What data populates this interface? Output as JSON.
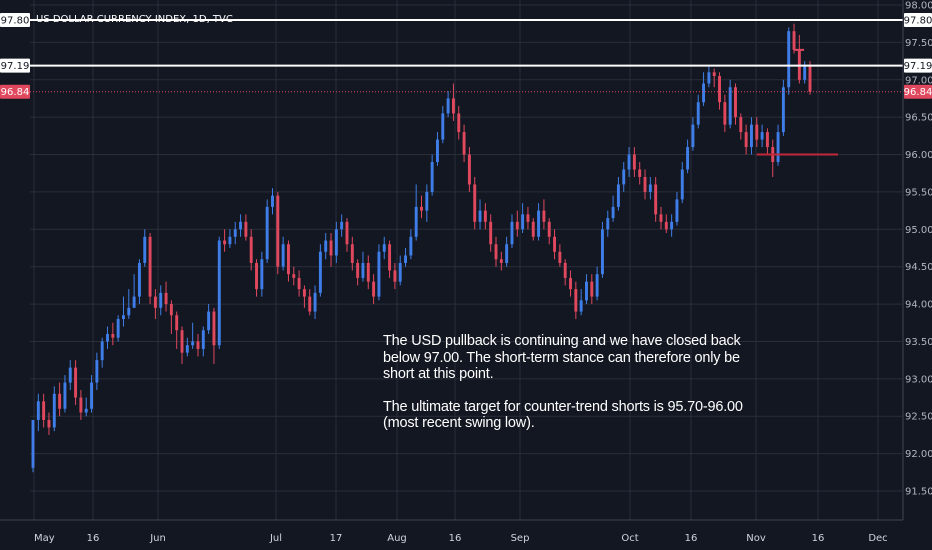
{
  "chart_data": {
    "type": "candlestick",
    "title": "US DOLLAR CURRENCY INDEX, 1D, TVC",
    "ylim": [
      91.1,
      98.0
    ],
    "y_ticks": [
      "98.00",
      "97.50",
      "97.00",
      "96.50",
      "96.00",
      "95.50",
      "95.00",
      "94.50",
      "94.00",
      "93.50",
      "93.00",
      "92.50",
      "92.00",
      "91.50"
    ],
    "x_ticks": [
      "May",
      "16",
      "Jun",
      "Jul",
      "17",
      "Aug",
      "16",
      "Sep",
      "Oct",
      "16",
      "Nov",
      "16",
      "Dec"
    ],
    "colors": {
      "up": "#3f7ee8",
      "down": "#e0485e",
      "background": "#131722",
      "grid": "#2a2e39"
    },
    "horizontal_lines": [
      {
        "label": "97.80",
        "value": 97.8,
        "color": "#ffffff"
      },
      {
        "label": "97.19",
        "value": 97.19,
        "color": "#ffffff"
      },
      {
        "label": "96.84",
        "value": 96.84,
        "color": "#e0485e",
        "style": "dotted"
      }
    ],
    "support_segment": {
      "value": 96.0,
      "color": "#c0283a"
    },
    "candles": [
      [
        91.81,
        92.45,
        92.45,
        91.75
      ],
      [
        92.45,
        92.7,
        92.8,
        92.3
      ],
      [
        92.7,
        92.45,
        92.8,
        92.35
      ],
      [
        92.45,
        92.35,
        92.55,
        92.25
      ],
      [
        92.35,
        92.8,
        92.9,
        92.3
      ],
      [
        92.8,
        92.6,
        92.95,
        92.5
      ],
      [
        92.6,
        92.95,
        93.05,
        92.55
      ],
      [
        92.95,
        93.15,
        93.25,
        92.85
      ],
      [
        93.15,
        92.75,
        93.25,
        92.65
      ],
      [
        92.75,
        92.55,
        92.85,
        92.45
      ],
      [
        92.55,
        92.6,
        92.75,
        92.5
      ],
      [
        92.6,
        92.95,
        93.05,
        92.55
      ],
      [
        92.95,
        93.25,
        93.35,
        92.85
      ],
      [
        93.25,
        93.5,
        93.55,
        93.15
      ],
      [
        93.5,
        93.6,
        93.7,
        93.4
      ],
      [
        93.6,
        93.55,
        93.75,
        93.45
      ],
      [
        93.55,
        93.8,
        93.85,
        93.5
      ],
      [
        93.8,
        93.85,
        94.1,
        93.7
      ],
      [
        93.85,
        93.95,
        94.2,
        93.8
      ],
      [
        93.95,
        94.1,
        94.4,
        93.95
      ],
      [
        94.1,
        94.55,
        94.6,
        94.0
      ],
      [
        94.55,
        94.9,
        95.0,
        94.5
      ],
      [
        94.9,
        94.1,
        94.95,
        94.0
      ],
      [
        94.1,
        93.95,
        94.2,
        93.8
      ],
      [
        93.95,
        94.15,
        94.25,
        93.85
      ],
      [
        94.15,
        94.0,
        94.3,
        93.9
      ],
      [
        94.0,
        93.85,
        94.05,
        93.6
      ],
      [
        93.85,
        93.65,
        93.9,
        93.4
      ],
      [
        93.65,
        93.35,
        93.7,
        93.2
      ],
      [
        93.35,
        93.45,
        93.55,
        93.3
      ],
      [
        93.45,
        93.5,
        93.75,
        93.4
      ],
      [
        93.5,
        93.4,
        93.6,
        93.3
      ],
      [
        93.4,
        93.65,
        93.7,
        93.3
      ],
      [
        93.65,
        93.9,
        94.0,
        93.6
      ],
      [
        93.9,
        93.45,
        93.95,
        93.2
      ],
      [
        93.45,
        94.85,
        94.9,
        93.4
      ],
      [
        94.85,
        94.8,
        95.0,
        94.7
      ],
      [
        94.8,
        94.9,
        95.0,
        94.75
      ],
      [
        94.9,
        95.0,
        95.1,
        94.8
      ],
      [
        95.0,
        95.1,
        95.2,
        94.9
      ],
      [
        95.1,
        94.9,
        95.2,
        94.85
      ],
      [
        94.9,
        94.55,
        95.0,
        94.45
      ],
      [
        94.55,
        94.2,
        94.6,
        94.1
      ],
      [
        94.2,
        94.6,
        94.7,
        94.1
      ],
      [
        94.6,
        95.3,
        95.4,
        94.55
      ],
      [
        95.3,
        95.45,
        95.55,
        95.2
      ],
      [
        95.45,
        94.5,
        95.5,
        94.4
      ],
      [
        94.5,
        94.8,
        94.9,
        94.45
      ],
      [
        94.8,
        94.4,
        94.85,
        94.3
      ],
      [
        94.4,
        94.35,
        94.5,
        94.25
      ],
      [
        94.35,
        94.2,
        94.45,
        94.1
      ],
      [
        94.2,
        94.1,
        94.25,
        93.95
      ],
      [
        94.1,
        93.9,
        94.2,
        93.85
      ],
      [
        93.9,
        94.15,
        94.25,
        93.8
      ],
      [
        94.15,
        94.7,
        94.8,
        94.1
      ],
      [
        94.7,
        94.85,
        94.95,
        94.6
      ],
      [
        94.85,
        94.65,
        94.95,
        94.5
      ],
      [
        94.65,
        95.0,
        95.1,
        94.55
      ],
      [
        95.0,
        95.1,
        95.2,
        94.9
      ],
      [
        95.1,
        94.8,
        95.15,
        94.7
      ],
      [
        94.8,
        94.55,
        94.9,
        94.45
      ],
      [
        94.55,
        94.35,
        94.6,
        94.25
      ],
      [
        94.35,
        94.55,
        94.7,
        94.3
      ],
      [
        94.55,
        94.3,
        94.65,
        94.2
      ],
      [
        94.3,
        94.1,
        94.4,
        94.0
      ],
      [
        94.1,
        94.7,
        94.8,
        94.05
      ],
      [
        94.7,
        94.8,
        94.9,
        94.6
      ],
      [
        94.8,
        94.45,
        94.85,
        94.35
      ],
      [
        94.45,
        94.3,
        94.55,
        94.2
      ],
      [
        94.3,
        94.55,
        94.65,
        94.25
      ],
      [
        94.55,
        94.65,
        94.75,
        94.5
      ],
      [
        94.65,
        94.9,
        95.0,
        94.6
      ],
      [
        94.9,
        95.3,
        95.6,
        94.85
      ],
      [
        95.3,
        95.25,
        95.45,
        95.15
      ],
      [
        95.25,
        95.5,
        95.6,
        95.1
      ],
      [
        95.5,
        95.9,
        96.0,
        95.45
      ],
      [
        95.9,
        96.2,
        96.3,
        95.85
      ],
      [
        96.2,
        96.55,
        96.65,
        96.15
      ],
      [
        96.55,
        96.75,
        96.85,
        96.5
      ],
      [
        96.75,
        96.55,
        96.95,
        96.45
      ],
      [
        96.55,
        96.3,
        96.65,
        96.2
      ],
      [
        96.3,
        96.0,
        96.4,
        95.9
      ],
      [
        96.0,
        95.6,
        96.1,
        95.5
      ],
      [
        95.6,
        95.1,
        95.7,
        95.0
      ],
      [
        95.1,
        95.25,
        95.4,
        95.0
      ],
      [
        95.25,
        95.1,
        95.35,
        95.0
      ],
      [
        95.1,
        94.8,
        95.2,
        94.7
      ],
      [
        94.8,
        94.6,
        94.9,
        94.5
      ],
      [
        94.6,
        94.55,
        94.7,
        94.45
      ],
      [
        94.55,
        94.8,
        94.9,
        94.5
      ],
      [
        94.8,
        95.1,
        95.2,
        94.75
      ],
      [
        95.1,
        95.0,
        95.25,
        94.9
      ],
      [
        95.0,
        95.2,
        95.35,
        94.95
      ],
      [
        95.2,
        95.1,
        95.3,
        95.0
      ],
      [
        95.1,
        94.9,
        95.15,
        94.85
      ],
      [
        94.9,
        95.25,
        95.35,
        94.85
      ],
      [
        95.25,
        95.1,
        95.4,
        95.0
      ],
      [
        95.1,
        94.9,
        95.15,
        94.8
      ],
      [
        94.9,
        94.7,
        95.0,
        94.6
      ],
      [
        94.7,
        94.55,
        94.8,
        94.5
      ],
      [
        94.55,
        94.35,
        94.6,
        94.25
      ],
      [
        94.35,
        94.2,
        94.45,
        94.1
      ],
      [
        94.2,
        93.9,
        94.3,
        93.8
      ],
      [
        93.9,
        94.05,
        94.2,
        93.85
      ],
      [
        94.05,
        94.3,
        94.4,
        94.0
      ],
      [
        94.3,
        94.1,
        94.4,
        94.0
      ],
      [
        94.1,
        94.4,
        94.5,
        94.05
      ],
      [
        94.4,
        95.0,
        95.1,
        94.35
      ],
      [
        95.0,
        95.15,
        95.25,
        94.9
      ],
      [
        95.15,
        95.3,
        95.45,
        95.1
      ],
      [
        95.3,
        95.6,
        95.7,
        95.25
      ],
      [
        95.6,
        95.8,
        95.9,
        95.5
      ],
      [
        95.8,
        96.0,
        96.1,
        95.7
      ],
      [
        96.0,
        95.8,
        96.1,
        95.7
      ],
      [
        95.8,
        95.7,
        95.9,
        95.6
      ],
      [
        95.7,
        95.5,
        95.8,
        95.4
      ],
      [
        95.5,
        95.6,
        95.7,
        95.4
      ],
      [
        95.6,
        95.2,
        95.7,
        95.1
      ],
      [
        95.2,
        95.1,
        95.3,
        95.0
      ],
      [
        95.1,
        95.0,
        95.2,
        94.95
      ],
      [
        95.0,
        95.1,
        95.2,
        94.9
      ],
      [
        95.1,
        95.4,
        95.5,
        95.05
      ],
      [
        95.4,
        95.8,
        95.9,
        95.35
      ],
      [
        95.8,
        96.1,
        96.2,
        95.75
      ],
      [
        96.1,
        96.4,
        96.5,
        96.05
      ],
      [
        96.4,
        96.7,
        96.8,
        96.35
      ],
      [
        96.7,
        96.95,
        97.1,
        96.65
      ],
      [
        96.95,
        97.1,
        97.2,
        96.9
      ],
      [
        97.1,
        97.05,
        97.15,
        96.9
      ],
      [
        97.05,
        96.7,
        97.1,
        96.6
      ],
      [
        96.7,
        96.4,
        96.8,
        96.3
      ],
      [
        96.4,
        96.9,
        97.0,
        96.35
      ],
      [
        96.9,
        96.5,
        96.95,
        96.4
      ],
      [
        96.5,
        96.3,
        96.55,
        96.2
      ],
      [
        96.3,
        96.1,
        96.4,
        96.0
      ],
      [
        96.1,
        96.4,
        96.5,
        96.0
      ],
      [
        96.4,
        96.2,
        96.5,
        96.1
      ],
      [
        96.2,
        96.3,
        96.4,
        96.1
      ],
      [
        96.3,
        96.1,
        96.35,
        96.0
      ],
      [
        96.1,
        95.9,
        96.2,
        95.7
      ],
      [
        95.9,
        96.3,
        96.4,
        95.85
      ],
      [
        96.3,
        96.9,
        97.0,
        96.25
      ],
      [
        96.9,
        97.65,
        97.7,
        96.8
      ],
      [
        97.65,
        97.4,
        97.75,
        97.35
      ],
      [
        97.4,
        97.0,
        97.6,
        96.95
      ],
      [
        97.0,
        97.2,
        97.25,
        96.95
      ],
      [
        97.2,
        96.84,
        97.25,
        96.8
      ]
    ],
    "annotation": [
      "The USD pullback is continuing and we have closed back below 97.00. The short-term stance can therefore only be short at this point.",
      "The ultimate target for counter-trend shorts is 95.70-96.00 (most recent swing low)."
    ]
  }
}
